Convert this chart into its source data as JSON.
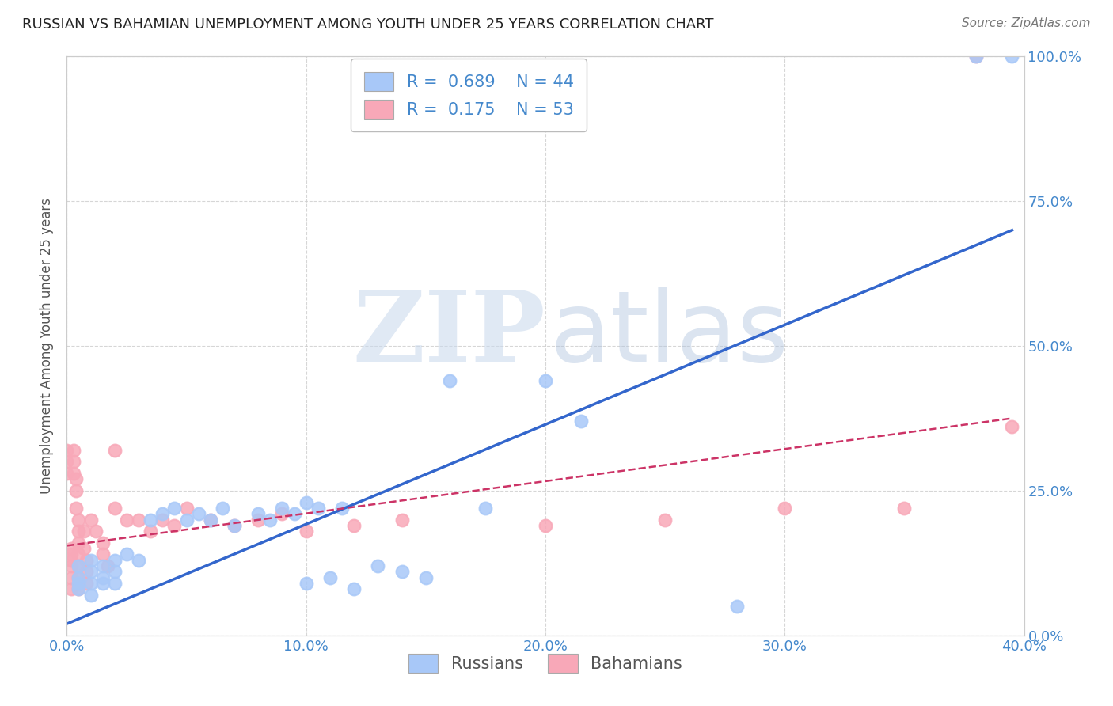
{
  "title": "RUSSIAN VS BAHAMIAN UNEMPLOYMENT AMONG YOUTH UNDER 25 YEARS CORRELATION CHART",
  "source": "Source: ZipAtlas.com",
  "ylabel": "Unemployment Among Youth under 25 years",
  "xlim": [
    0.0,
    0.4
  ],
  "ylim": [
    0.0,
    1.0
  ],
  "xticks": [
    0.0,
    0.1,
    0.2,
    0.3,
    0.4
  ],
  "yticks": [
    0.0,
    0.25,
    0.5,
    0.75,
    1.0
  ],
  "xtick_labels": [
    "0.0%",
    "10.0%",
    "20.0%",
    "30.0%",
    "40.0%"
  ],
  "ytick_labels": [
    "0.0%",
    "25.0%",
    "50.0%",
    "75.0%",
    "100.0%"
  ],
  "legend_russian_R": "0.689",
  "legend_russian_N": "44",
  "legend_bahamian_R": "0.175",
  "legend_bahamian_N": "53",
  "russian_color": "#a8c8f8",
  "bahamian_color": "#f8a8b8",
  "russian_line_color": "#3366cc",
  "bahamian_line_color": "#cc3366",
  "russian_scatter": [
    [
      0.005,
      0.12
    ],
    [
      0.005,
      0.1
    ],
    [
      0.005,
      0.09
    ],
    [
      0.005,
      0.08
    ],
    [
      0.01,
      0.13
    ],
    [
      0.01,
      0.11
    ],
    [
      0.01,
      0.09
    ],
    [
      0.01,
      0.07
    ],
    [
      0.015,
      0.12
    ],
    [
      0.015,
      0.1
    ],
    [
      0.015,
      0.09
    ],
    [
      0.02,
      0.13
    ],
    [
      0.02,
      0.11
    ],
    [
      0.02,
      0.09
    ],
    [
      0.025,
      0.14
    ],
    [
      0.03,
      0.13
    ],
    [
      0.035,
      0.2
    ],
    [
      0.04,
      0.21
    ],
    [
      0.045,
      0.22
    ],
    [
      0.05,
      0.2
    ],
    [
      0.055,
      0.21
    ],
    [
      0.06,
      0.2
    ],
    [
      0.065,
      0.22
    ],
    [
      0.07,
      0.19
    ],
    [
      0.08,
      0.21
    ],
    [
      0.085,
      0.2
    ],
    [
      0.09,
      0.22
    ],
    [
      0.095,
      0.21
    ],
    [
      0.1,
      0.23
    ],
    [
      0.1,
      0.09
    ],
    [
      0.105,
      0.22
    ],
    [
      0.11,
      0.1
    ],
    [
      0.115,
      0.22
    ],
    [
      0.12,
      0.08
    ],
    [
      0.13,
      0.12
    ],
    [
      0.14,
      0.11
    ],
    [
      0.15,
      0.1
    ],
    [
      0.16,
      0.44
    ],
    [
      0.175,
      0.22
    ],
    [
      0.2,
      0.44
    ],
    [
      0.215,
      0.37
    ],
    [
      0.28,
      0.05
    ],
    [
      0.38,
      1.0
    ],
    [
      0.395,
      1.0
    ]
  ],
  "bahamian_scatter": [
    [
      0.0,
      0.3
    ],
    [
      0.0,
      0.28
    ],
    [
      0.0,
      0.32
    ],
    [
      0.002,
      0.14
    ],
    [
      0.002,
      0.12
    ],
    [
      0.002,
      0.1
    ],
    [
      0.002,
      0.08
    ],
    [
      0.002,
      0.15
    ],
    [
      0.002,
      0.13
    ],
    [
      0.003,
      0.32
    ],
    [
      0.003,
      0.28
    ],
    [
      0.003,
      0.3
    ],
    [
      0.004,
      0.27
    ],
    [
      0.004,
      0.25
    ],
    [
      0.004,
      0.22
    ],
    [
      0.005,
      0.2
    ],
    [
      0.005,
      0.18
    ],
    [
      0.005,
      0.16
    ],
    [
      0.005,
      0.14
    ],
    [
      0.005,
      0.12
    ],
    [
      0.005,
      0.1
    ],
    [
      0.005,
      0.08
    ],
    [
      0.007,
      0.18
    ],
    [
      0.007,
      0.15
    ],
    [
      0.008,
      0.13
    ],
    [
      0.008,
      0.11
    ],
    [
      0.008,
      0.09
    ],
    [
      0.01,
      0.2
    ],
    [
      0.012,
      0.18
    ],
    [
      0.015,
      0.16
    ],
    [
      0.015,
      0.14
    ],
    [
      0.017,
      0.12
    ],
    [
      0.02,
      0.32
    ],
    [
      0.02,
      0.22
    ],
    [
      0.025,
      0.2
    ],
    [
      0.03,
      0.2
    ],
    [
      0.035,
      0.18
    ],
    [
      0.04,
      0.2
    ],
    [
      0.045,
      0.19
    ],
    [
      0.05,
      0.22
    ],
    [
      0.06,
      0.2
    ],
    [
      0.07,
      0.19
    ],
    [
      0.08,
      0.2
    ],
    [
      0.09,
      0.21
    ],
    [
      0.1,
      0.18
    ],
    [
      0.12,
      0.19
    ],
    [
      0.14,
      0.2
    ],
    [
      0.2,
      0.19
    ],
    [
      0.25,
      0.2
    ],
    [
      0.3,
      0.22
    ],
    [
      0.35,
      0.22
    ],
    [
      0.38,
      1.0
    ],
    [
      0.395,
      0.36
    ]
  ],
  "russian_line_x": [
    0.0,
    0.395
  ],
  "russian_line_y": [
    0.02,
    0.7
  ],
  "bahamian_line_x": [
    0.0,
    0.395
  ],
  "bahamian_line_y": [
    0.155,
    0.375
  ],
  "title_fontsize": 13,
  "source_fontsize": 11,
  "tick_fontsize": 13,
  "ylabel_fontsize": 12,
  "legend_fontsize": 15,
  "tick_color": "#4488cc",
  "ylabel_color": "#555555"
}
